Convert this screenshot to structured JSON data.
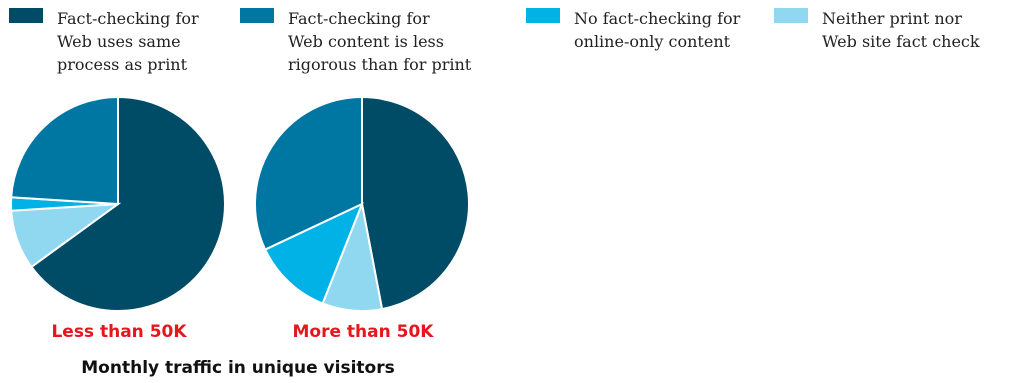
{
  "colors": {
    "series": [
      "#004c67",
      "#0077a3",
      "#00b2e5",
      "#90d8ef"
    ],
    "caption": "#e3171d"
  },
  "legend": [
    {
      "label": "Fact-checking for\nWeb uses same\nprocess as print"
    },
    {
      "label": "Fact-checking for\nWeb content is less\nrigorous than for print"
    },
    {
      "label": "No fact-checking for\nonline-only content"
    },
    {
      "label": "Neither print nor\nWeb site fact check"
    }
  ],
  "chart_data": {
    "type": "pie",
    "xlabel": "Monthly traffic in unique visitors",
    "series_names": [
      "Fact-checking for Web uses same process as print",
      "Fact-checking for Web content is less rigorous than for print",
      "No fact-checking for online-only content",
      "Neither print nor Web site fact check"
    ],
    "pies": [
      {
        "label": "Less than 50K",
        "values": [
          65,
          0,
          9,
          2,
          24
        ]
      },
      {
        "label": "More than 50K",
        "values": [
          47,
          0,
          9,
          12,
          32
        ]
      }
    ],
    "order_note": "values listed clockwise from 12 o'clock: series1, series2(none), series4, series3, series2"
  }
}
